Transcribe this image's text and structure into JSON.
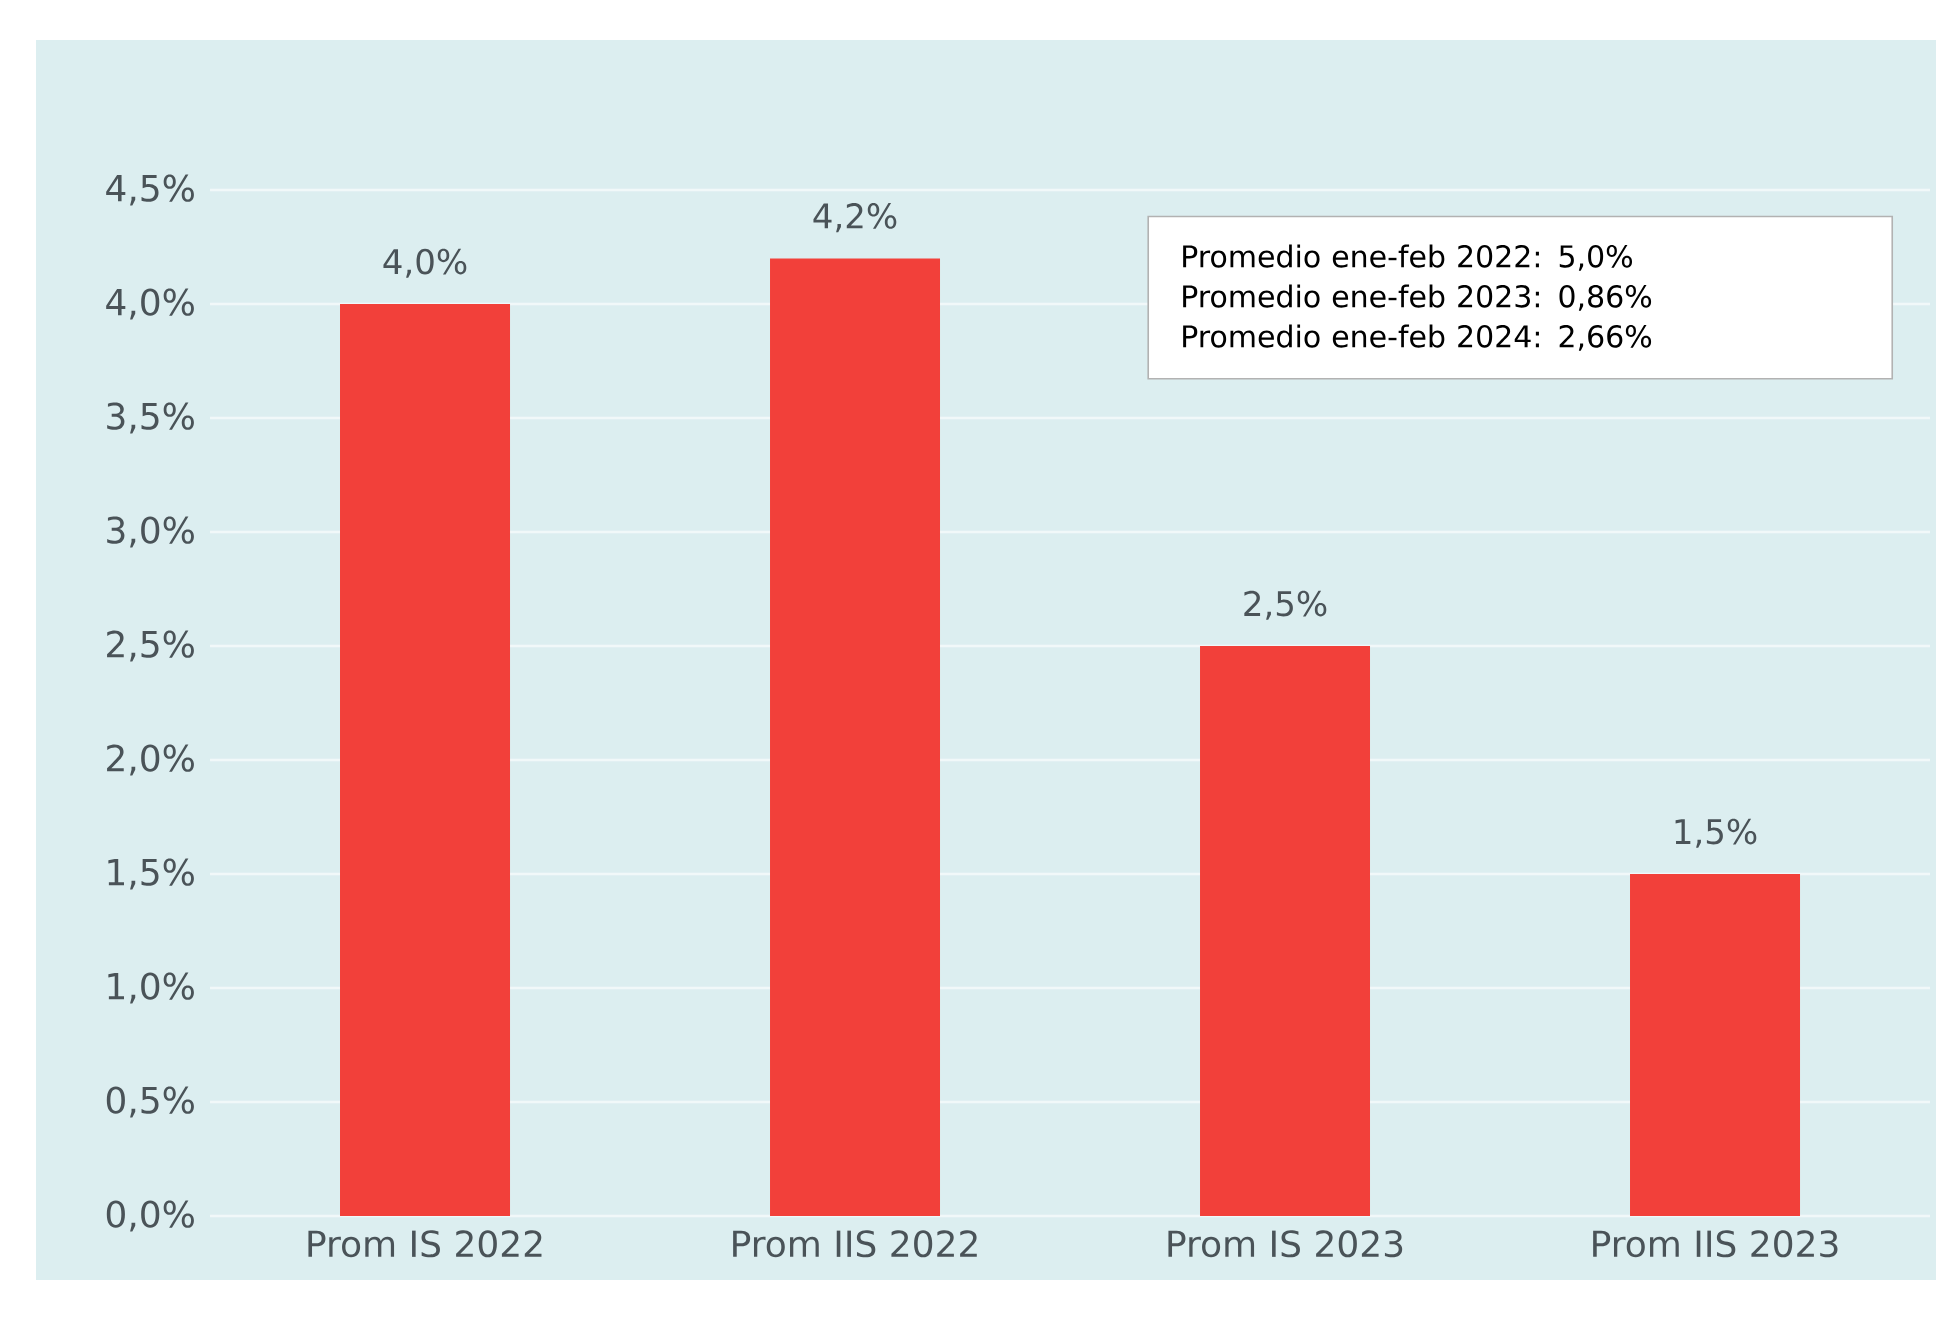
{
  "chart_data": {
    "type": "bar",
    "categories": [
      "Prom IS 2022",
      "Prom IIS 2022",
      "Prom IS 2023",
      "Prom IIS 2023"
    ],
    "values": [
      4.0,
      4.2,
      2.5,
      1.5
    ],
    "value_labels": [
      "4,0%",
      "4,2%",
      "2,5%",
      "1,5%"
    ],
    "color": "#f2403a",
    "ylim": [
      0,
      4.5
    ],
    "yticks": [
      {
        "value": 0,
        "label": "0,0%"
      },
      {
        "value": 0.5,
        "label": "0,5%"
      },
      {
        "value": 1,
        "label": "1,0%"
      },
      {
        "value": 1.5,
        "label": "1,5%"
      },
      {
        "value": 2,
        "label": "2,0%"
      },
      {
        "value": 2.5,
        "label": "2,5%"
      },
      {
        "value": 3,
        "label": "3,0%"
      },
      {
        "value": 3.5,
        "label": "3,5%"
      },
      {
        "value": 4,
        "label": "4,0%"
      },
      {
        "value": 4.5,
        "label": "4,5%"
      }
    ],
    "grid": "y",
    "annotations": [
      "Promedio ene-feb 2022: 5,0%",
      "Promedio ene-feb 2023: 0,86%",
      "Promedio ene-feb 2024: 2,66%"
    ]
  }
}
